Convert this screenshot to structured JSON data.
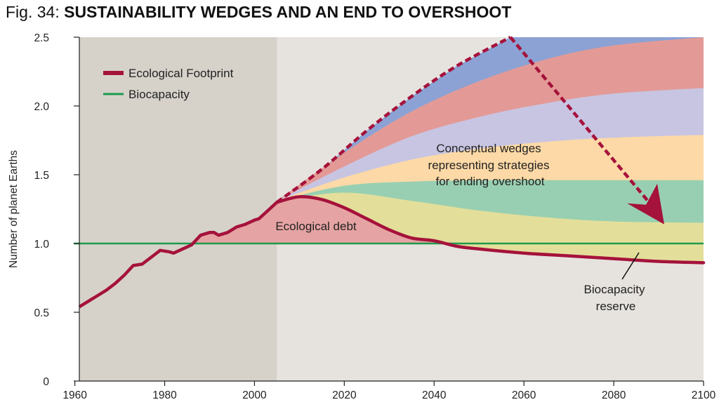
{
  "figure": {
    "number_label": "Fig. 34:",
    "title": "SUSTAINABILITY WEDGES AND AN END TO OVERSHOOT"
  },
  "chart_data": {
    "type": "area",
    "ylabel": "Number of planet Earths",
    "xlim": [
      1961,
      2100
    ],
    "ylim": [
      0,
      2.5
    ],
    "x_ticks": [
      1960,
      1980,
      2000,
      2020,
      2040,
      2060,
      2080,
      2100
    ],
    "y_ticks": [
      0,
      0.5,
      1.0,
      1.5,
      2.0,
      2.5
    ],
    "y_tick_labels": [
      "0",
      "0.5",
      "1.0",
      "1.5",
      "2.0",
      "2.5"
    ],
    "historical_period": [
      1961,
      2005
    ],
    "legend": {
      "position": "top-left",
      "entries": [
        {
          "label": "Ecological Footprint",
          "color": "#a5123b"
        },
        {
          "label": "Biocapacity",
          "color": "#1e9a4c"
        }
      ]
    },
    "colors": {
      "historical_bg": "#d6d2ca",
      "projection_bg": "#e6e3de",
      "footprint": "#a5123b",
      "biocapacity": "#1e9a4c",
      "debt_fill": "#e6a3a3",
      "wedges": [
        "#8ca2d4",
        "#e39a96",
        "#c8c5e3",
        "#fcd9a6",
        "#98cfb2",
        "#e3df9a"
      ]
    },
    "biocapacity_value": 1.0,
    "ecological_footprint_historical": [
      [
        1961,
        0.54
      ],
      [
        1963,
        0.58
      ],
      [
        1965,
        0.62
      ],
      [
        1967,
        0.66
      ],
      [
        1969,
        0.71
      ],
      [
        1971,
        0.77
      ],
      [
        1973,
        0.84
      ],
      [
        1975,
        0.85
      ],
      [
        1977,
        0.9
      ],
      [
        1979,
        0.95
      ],
      [
        1981,
        0.94
      ],
      [
        1982,
        0.93
      ],
      [
        1984,
        0.96
      ],
      [
        1986,
        0.99
      ],
      [
        1988,
        1.06
      ],
      [
        1990,
        1.08
      ],
      [
        1991,
        1.08
      ],
      [
        1992,
        1.06
      ],
      [
        1994,
        1.08
      ],
      [
        1996,
        1.12
      ],
      [
        1998,
        1.14
      ],
      [
        2000,
        1.17
      ],
      [
        2001,
        1.18
      ],
      [
        2003,
        1.24
      ],
      [
        2005,
        1.3
      ]
    ],
    "ecological_footprint_wedges_scenario": [
      [
        2005,
        1.3
      ],
      [
        2010,
        1.34
      ],
      [
        2015,
        1.32
      ],
      [
        2020,
        1.26
      ],
      [
        2025,
        1.18
      ],
      [
        2030,
        1.1
      ],
      [
        2035,
        1.04
      ],
      [
        2040,
        1.02
      ],
      [
        2045,
        0.98
      ],
      [
        2050,
        0.96
      ],
      [
        2060,
        0.93
      ],
      [
        2070,
        0.91
      ],
      [
        2080,
        0.89
      ],
      [
        2090,
        0.87
      ],
      [
        2100,
        0.86
      ]
    ],
    "business_as_usual": [
      [
        2005,
        1.3
      ],
      [
        2015,
        1.54
      ],
      [
        2025,
        1.82
      ],
      [
        2035,
        2.07
      ],
      [
        2045,
        2.29
      ],
      [
        2057,
        2.5
      ],
      [
        2100,
        2.5
      ]
    ],
    "wedge_boundaries": [
      [
        [
          2005,
          1.31
        ],
        [
          2020,
          1.66
        ],
        [
          2035,
          1.96
        ],
        [
          2050,
          2.18
        ],
        [
          2065,
          2.34
        ],
        [
          2080,
          2.44
        ],
        [
          2100,
          2.5
        ]
      ],
      [
        [
          2005,
          1.31
        ],
        [
          2020,
          1.56
        ],
        [
          2035,
          1.78
        ],
        [
          2050,
          1.92
        ],
        [
          2065,
          2.02
        ],
        [
          2080,
          2.09
        ],
        [
          2100,
          2.13
        ]
      ],
      [
        [
          2005,
          1.31
        ],
        [
          2020,
          1.48
        ],
        [
          2035,
          1.61
        ],
        [
          2050,
          1.69
        ],
        [
          2065,
          1.74
        ],
        [
          2080,
          1.77
        ],
        [
          2100,
          1.79
        ]
      ],
      [
        [
          2005,
          1.31
        ],
        [
          2020,
          1.42
        ],
        [
          2035,
          1.45
        ],
        [
          2050,
          1.46
        ],
        [
          2065,
          1.46
        ],
        [
          2080,
          1.46
        ],
        [
          2100,
          1.46
        ]
      ],
      [
        [
          2005,
          1.31
        ],
        [
          2020,
          1.37
        ],
        [
          2035,
          1.31
        ],
        [
          2050,
          1.24
        ],
        [
          2065,
          1.19
        ],
        [
          2080,
          1.16
        ],
        [
          2100,
          1.15
        ]
      ]
    ],
    "reduction_arrow": {
      "from": [
        2057,
        2.5
      ],
      "to": [
        2090,
        1.18
      ]
    },
    "annotations": {
      "debt": "Ecological debt",
      "wedges": [
        "Conceptual wedges",
        "representing strategies",
        "for ending overshoot"
      ],
      "reserve": [
        "Biocapacity",
        "reserve"
      ]
    }
  }
}
